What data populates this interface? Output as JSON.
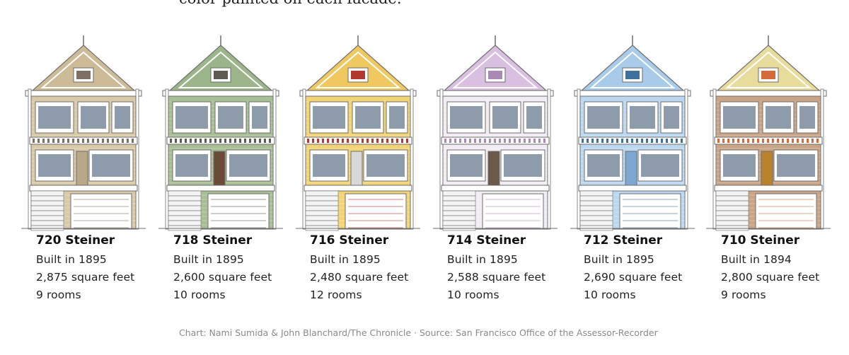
{
  "intro_text": "color painted on each facade.",
  "houses": [
    {
      "name": "720 Steiner",
      "built": "Built in 1895",
      "area": "2,875 square feet",
      "rooms": "9 rooms",
      "colors": {
        "main": "#d9c9a8",
        "trim": "#ffffff",
        "accent": "#7c7064",
        "gable": "#cdbb98",
        "door": "#b9a78a"
      }
    },
    {
      "name": "718 Steiner",
      "built": "Built in 1895",
      "area": "2,600 square feet",
      "rooms": "10 rooms",
      "colors": {
        "main": "#a8bf95",
        "trim": "#ffffff",
        "accent": "#5d5a52",
        "gable": "#9bb48a",
        "door": "#6b4a3a"
      }
    },
    {
      "name": "716 Steiner",
      "built": "Built in 1895",
      "area": "2,480 square feet",
      "rooms": "12 rooms",
      "colors": {
        "main": "#f2d477",
        "trim": "#ffffff",
        "accent": "#b03a2e",
        "gable": "#f0c860",
        "door": "#d8d8d8"
      }
    },
    {
      "name": "714 Steiner",
      "built": "Built in 1895",
      "area": "2,588 square feet",
      "rooms": "10 rooms",
      "colors": {
        "main": "#f2ecf4",
        "trim": "#ffffff",
        "accent": "#a98ab4",
        "gable": "#d9bfe0",
        "door": "#6b5a4a"
      }
    },
    {
      "name": "712 Steiner",
      "built": "Built in 1895",
      "area": "2,690 square feet",
      "rooms": "10 rooms",
      "colors": {
        "main": "#bcd8f0",
        "trim": "#ffffff",
        "accent": "#3f6f9c",
        "gable": "#a8cbea",
        "door": "#7da7d1"
      }
    },
    {
      "name": "710 Steiner",
      "built": "Built in 1894",
      "area": "2,800 square feet",
      "rooms": "9 rooms",
      "colors": {
        "main": "#c9a486",
        "trim": "#ffffff",
        "accent": "#d46a3a",
        "gable": "#e8dc9c",
        "door": "#b8832c"
      }
    }
  ],
  "credit": "Chart: Nami Sumida & John Blanchard/The Chronicle · Source: San Francisco Office of the Assessor-Recorder"
}
